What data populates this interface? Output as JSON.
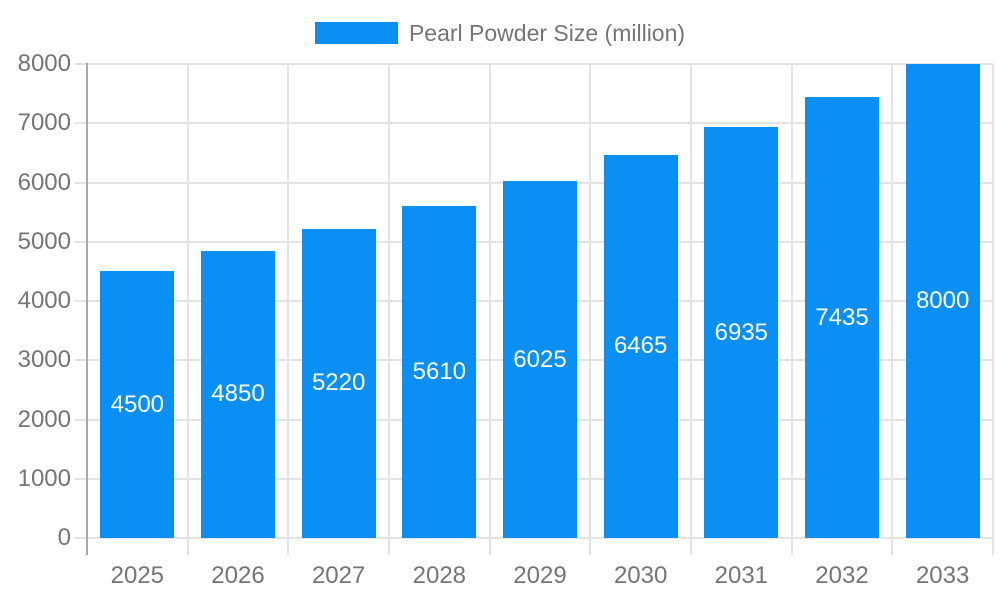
{
  "chart_data": {
    "type": "bar",
    "title": "Pearl Powder Size (million)",
    "categories": [
      "2025",
      "2026",
      "2027",
      "2028",
      "2029",
      "2030",
      "2031",
      "2032",
      "2033"
    ],
    "series": [
      {
        "name": "Pearl Powder Size (million)",
        "values": [
          4500,
          4850,
          5220,
          5610,
          6025,
          6465,
          6935,
          7435,
          8000
        ]
      }
    ],
    "value_labels": [
      "4500",
      "4850",
      "5220",
      "5610",
      "6025",
      "6465",
      "6935",
      "7435",
      "8000"
    ],
    "xlabel": "",
    "ylabel": "",
    "ylim": [
      0,
      8000
    ],
    "y_tick_step": 1000,
    "y_tick_labels": [
      "0",
      "1000",
      "2000",
      "3000",
      "4000",
      "5000",
      "6000",
      "7000",
      "8000"
    ],
    "grid": "on",
    "legend_position": "top-center",
    "value_label_position": "inside-center-white"
  },
  "legend": {
    "label": "Pearl Powder Size (million)"
  },
  "colors": {
    "bar": "#0a90f5",
    "grid": "#e3e3e3",
    "axis": "#a8a8a8",
    "tick_label": "#757575",
    "value_label": "#ffffff",
    "background": "#ffffff"
  }
}
